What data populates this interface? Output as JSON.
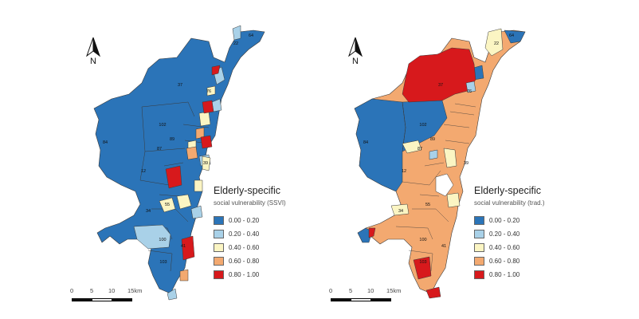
{
  "colors": {
    "c1": "#2b74b8",
    "c2": "#a9d1e8",
    "c3": "#fbf5c3",
    "c4": "#f3a970",
    "c5": "#d7191c",
    "outline": "#3a3a3a"
  },
  "north_arrow": {
    "label": "N"
  },
  "scale_bar": {
    "ticks": [
      "0",
      "5",
      "10",
      "15km"
    ]
  },
  "maps": [
    {
      "legend": {
        "title": "Elderly-specific",
        "subtitle": "social vulnerability (SSVI)",
        "classes": [
          {
            "label": "0.00 - 0.20",
            "color": "#2b74b8"
          },
          {
            "label": "0.20 - 0.40",
            "color": "#a9d1e8"
          },
          {
            "label": "0.40 - 0.60",
            "color": "#fbf5c3"
          },
          {
            "label": "0.60 - 0.80",
            "color": "#f3a970"
          },
          {
            "label": "0.80 - 1.00",
            "color": "#d7191c"
          }
        ]
      },
      "region_labels": [
        "37",
        "102",
        "84",
        "100",
        "103",
        "64",
        "22",
        "39",
        "12",
        "34",
        "41",
        "76",
        "55",
        "87",
        "89"
      ]
    },
    {
      "legend": {
        "title": "Elderly-specific",
        "subtitle": "social vulnerability (trad.)",
        "classes": [
          {
            "label": "0.00 - 0.20",
            "color": "#2b74b8"
          },
          {
            "label": "0.20 - 0.40",
            "color": "#a9d1e8"
          },
          {
            "label": "0.40 - 0.60",
            "color": "#fbf5c3"
          },
          {
            "label": "0.60 - 0.80",
            "color": "#f3a970"
          },
          {
            "label": "0.80 - 1.00",
            "color": "#d7191c"
          }
        ]
      },
      "region_labels": [
        "37",
        "102",
        "84",
        "100",
        "103",
        "64",
        "22",
        "39",
        "12",
        "34",
        "41",
        "76",
        "55",
        "87",
        "89"
      ]
    }
  ]
}
